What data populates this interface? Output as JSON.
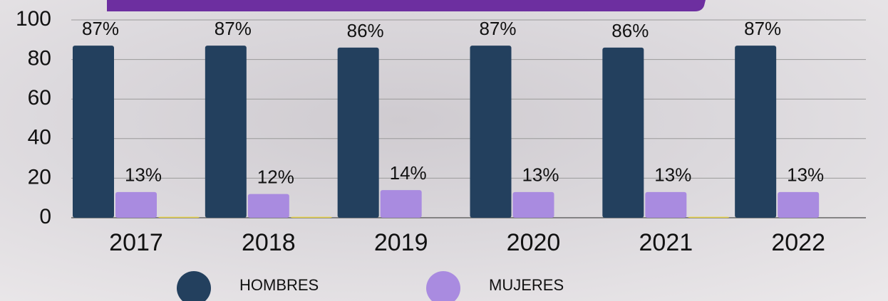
{
  "chart_data": {
    "type": "bar",
    "categories": [
      "2017",
      "2018",
      "2019",
      "2020",
      "2021",
      "2022"
    ],
    "series": [
      {
        "name": "HOMBRES",
        "color": "#23405e",
        "values": [
          87,
          87,
          86,
          87,
          86,
          87
        ],
        "value_labels": [
          "87%",
          "87%",
          "86%",
          "87%",
          "86%",
          "87%"
        ]
      },
      {
        "name": "MUJERES",
        "color": "#a98be0",
        "values": [
          13,
          12,
          14,
          13,
          13,
          13
        ],
        "value_labels": [
          "13%",
          "12%",
          "14%",
          "13%",
          "13%",
          "13%"
        ]
      },
      {
        "color": "#e8d44a",
        "values": [
          0.5,
          0.5,
          null,
          null,
          0.5,
          null
        ]
      }
    ],
    "ylim": [
      0,
      100
    ],
    "yticks": [
      0,
      20,
      40,
      60,
      80,
      100
    ],
    "grid": true,
    "legend": "bottom"
  }
}
